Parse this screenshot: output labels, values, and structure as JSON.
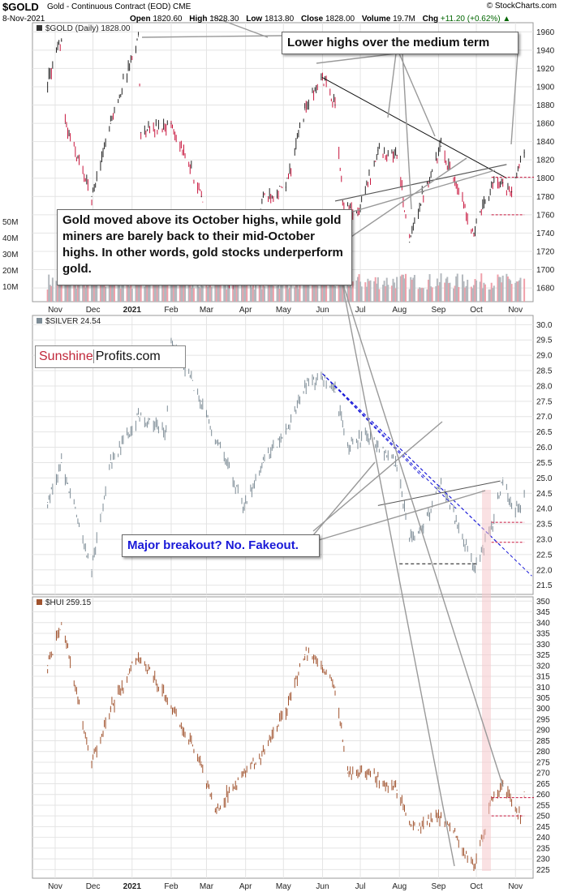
{
  "header": {
    "symbol": "$GOLD",
    "description": "Gold - Continuous Contract (EOD)  CME",
    "date": "8-Nov-2021",
    "open_label": "Open",
    "open": "1820.60",
    "high_label": "High",
    "high": "1828.30",
    "low_label": "Low",
    "low": "1813.80",
    "close_label": "Close",
    "close": "1828.00",
    "volume_label": "Volume",
    "volume": "19.7M",
    "chg_label": "Chg",
    "chg": "+11.20 (+0.62%)",
    "credit": "© StockCharts.com"
  },
  "brand": {
    "part1": "Sunshine",
    "part2": "Profits.com"
  },
  "annotations": {
    "lower_highs": "Lower highs over the medium term",
    "gold_above": "Gold moved above its October highs, while gold miners are barely back to their mid-October highs. In other words, gold stocks underperform gold.",
    "breakout": "Major breakout? No. Fakeout."
  },
  "colors": {
    "gold_up": "#222222",
    "gold_down": "#c8143c",
    "silver": "#7d8c96",
    "hui": "#a0522d",
    "trend_blue": "#1a1ad8",
    "level_red": "#c8143c",
    "volume_up": "#b4b9be",
    "volume_down": "#f0a0aa",
    "highlight": "#f5c8cc"
  },
  "chart_data": [
    {
      "type": "line",
      "label": "$GOLD (Daily) 1828.00",
      "title": "Gold - Continuous Contract (EOD)",
      "x_ticks": [
        "Nov",
        "Dec",
        "2021",
        "Feb",
        "Mar",
        "Apr",
        "May",
        "Jun",
        "Jul",
        "Aug",
        "Sep",
        "Oct",
        "Nov"
      ],
      "y_ticks": [
        1680,
        1700,
        1720,
        1740,
        1760,
        1780,
        1800,
        1820,
        1840,
        1860,
        1880,
        1900,
        1920,
        1940,
        1960
      ],
      "ylim": [
        1665,
        1970
      ],
      "volume_ticks": [
        "50M",
        "40M",
        "30M",
        "20M",
        "10M"
      ],
      "x": [
        "2020-10-26",
        "2020-11-06",
        "2020-11-09",
        "2020-11-30",
        "2020-12-15",
        "2021-01-06",
        "2021-01-08",
        "2021-02-01",
        "2021-02-25",
        "2021-03-08",
        "2021-03-31",
        "2021-04-15",
        "2021-05-03",
        "2021-05-18",
        "2021-06-01",
        "2021-06-11",
        "2021-06-17",
        "2021-06-29",
        "2021-07-15",
        "2021-07-30",
        "2021-08-09",
        "2021-08-20",
        "2021-09-03",
        "2021-09-15",
        "2021-09-29",
        "2021-10-14",
        "2021-10-22",
        "2021-10-29",
        "2021-11-05",
        "2021-11-08"
      ],
      "series": [
        {
          "name": "$GOLD",
          "values": [
            1905,
            1950,
            1860,
            1780,
            1860,
            1955,
            1850,
            1860,
            1780,
            1680,
            1685,
            1780,
            1790,
            1875,
            1910,
            1880,
            1775,
            1760,
            1830,
            1825,
            1730,
            1785,
            1835,
            1795,
            1740,
            1795,
            1795,
            1785,
            1818,
            1828
          ]
        }
      ]
    },
    {
      "type": "line",
      "label": "$SILVER 24.54",
      "x_ticks": [
        "Nov",
        "Dec",
        "2021",
        "Feb",
        "Mar",
        "Apr",
        "May",
        "Jun",
        "Jul",
        "Aug",
        "Sep",
        "Oct",
        "Nov"
      ],
      "y_ticks": [
        21.5,
        22.0,
        22.5,
        23.0,
        23.5,
        24.0,
        24.5,
        25.0,
        25.5,
        26.0,
        26.5,
        27.0,
        27.5,
        28.0,
        28.5,
        29.0,
        29.5,
        30.0
      ],
      "ylim": [
        21.2,
        30.3
      ],
      "x": [
        "2020-10-26",
        "2020-11-06",
        "2020-11-30",
        "2020-12-15",
        "2021-01-06",
        "2021-01-28",
        "2021-02-01",
        "2021-02-25",
        "2021-03-31",
        "2021-04-15",
        "2021-05-03",
        "2021-05-18",
        "2021-06-01",
        "2021-06-11",
        "2021-06-21",
        "2021-07-06",
        "2021-07-30",
        "2021-08-09",
        "2021-08-20",
        "2021-09-03",
        "2021-09-15",
        "2021-09-29",
        "2021-10-14",
        "2021-10-22",
        "2021-10-29",
        "2021-11-05",
        "2021-11-08"
      ],
      "series": [
        {
          "name": "$SILVER",
          "values": [
            24.2,
            25.5,
            22.0,
            25.5,
            27.0,
            26.5,
            29.5,
            27.5,
            24.0,
            25.5,
            26.5,
            28.0,
            28.2,
            27.8,
            26.0,
            26.4,
            25.4,
            23.0,
            23.4,
            24.8,
            23.6,
            22.0,
            23.5,
            25.0,
            24.0,
            24.0,
            24.54
          ]
        }
      ]
    },
    {
      "type": "line",
      "label": "$HUI 259.15",
      "x_ticks": [
        "Nov",
        "Dec",
        "2021",
        "Feb",
        "Mar",
        "Apr",
        "May",
        "Jun",
        "Jul",
        "Aug",
        "Sep",
        "Oct",
        "Nov"
      ],
      "y_ticks": [
        225,
        230,
        235,
        240,
        245,
        250,
        255,
        260,
        265,
        270,
        275,
        280,
        285,
        290,
        295,
        300,
        305,
        310,
        315,
        320,
        325,
        330,
        335,
        340,
        345,
        350
      ],
      "ylim": [
        221,
        352
      ],
      "x": [
        "2020-10-26",
        "2020-11-06",
        "2020-11-30",
        "2020-12-15",
        "2021-01-06",
        "2021-01-28",
        "2021-02-25",
        "2021-03-08",
        "2021-03-31",
        "2021-04-15",
        "2021-05-03",
        "2021-05-18",
        "2021-06-01",
        "2021-06-11",
        "2021-06-21",
        "2021-07-06",
        "2021-07-30",
        "2021-08-09",
        "2021-08-20",
        "2021-09-03",
        "2021-09-15",
        "2021-09-29",
        "2021-10-14",
        "2021-10-22",
        "2021-10-29",
        "2021-11-05",
        "2021-11-08"
      ],
      "series": [
        {
          "name": "$HUI",
          "values": [
            320,
            340,
            275,
            300,
            325,
            305,
            275,
            252,
            270,
            280,
            300,
            325,
            320,
            310,
            270,
            270,
            262,
            247,
            245,
            250,
            240,
            226,
            258,
            265,
            255,
            250,
            259.15
          ]
        }
      ]
    }
  ]
}
